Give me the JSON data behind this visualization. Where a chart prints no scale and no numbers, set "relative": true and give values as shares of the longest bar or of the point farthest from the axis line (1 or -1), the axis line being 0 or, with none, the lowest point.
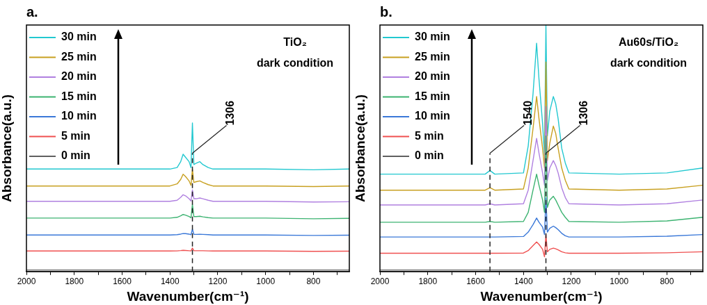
{
  "chart_data": [
    {
      "type": "line",
      "title": "a.",
      "xlabel": "Wavenumber(cm⁻¹)",
      "ylabel": "Absorbance(a.u.)",
      "relative": true,
      "legend": "top left",
      "annotations": [
        "TiO₂",
        "dark condition"
      ],
      "xlim": [
        2000,
        650
      ],
      "xticks": [
        2000,
        {
          "value": 1900,
          "label": null
        },
        1800,
        {
          "value": 1700,
          "label": null
        },
        1600,
        {
          "value": 1500,
          "label": null
        },
        1400,
        {
          "value": 1300,
          "label": null
        },
        1200,
        {
          "value": 1100,
          "label": null
        },
        1000,
        {
          "value": 900,
          "label": null
        },
        800,
        {
          "value": 700,
          "label": null
        }
      ],
      "ref_lines": [
        {
          "axis": "x",
          "value": 1306,
          "label": "1306",
          "line_style": "dashed"
        }
      ],
      "x": [
        2000,
        1600,
        1400,
        1370,
        1355,
        1345,
        1335,
        1320,
        1312,
        1306,
        1300,
        1290,
        1275,
        1262,
        1240,
        1220,
        1000,
        800,
        650
      ],
      "series": [
        {
          "name": "0 min",
          "color": "#606060",
          "values": [
            0.01,
            0.01,
            0.01,
            0.01,
            0.01,
            0.01,
            0.01,
            0.01,
            0.01,
            0.01,
            0.01,
            0.01,
            0.01,
            0.01,
            0.01,
            0.01,
            0.01,
            0.01,
            0.01
          ]
        },
        {
          "name": "5 min",
          "color": "#ef5050",
          "values": [
            0.138,
            0.138,
            0.138,
            0.139,
            0.141,
            0.143,
            0.142,
            0.14,
            0.139,
            0.158,
            0.14,
            0.14,
            0.14,
            0.14,
            0.139,
            0.138,
            0.138,
            0.136,
            0.137
          ]
        },
        {
          "name": "10 min",
          "color": "#3a78d8",
          "values": [
            0.246,
            0.246,
            0.246,
            0.248,
            0.252,
            0.256,
            0.255,
            0.252,
            0.248,
            0.286,
            0.25,
            0.25,
            0.251,
            0.25,
            0.248,
            0.246,
            0.246,
            0.243,
            0.245
          ]
        },
        {
          "name": "15 min",
          "color": "#3cb371",
          "values": [
            0.36,
            0.36,
            0.36,
            0.365,
            0.375,
            0.384,
            0.38,
            0.37,
            0.362,
            0.453,
            0.37,
            0.37,
            0.372,
            0.368,
            0.363,
            0.36,
            0.36,
            0.355,
            0.358
          ]
        },
        {
          "name": "20 min",
          "color": "#b080e0",
          "values": [
            0.473,
            0.473,
            0.473,
            0.48,
            0.5,
            0.517,
            0.51,
            0.49,
            0.475,
            0.55,
            0.49,
            0.49,
            0.495,
            0.49,
            0.48,
            0.473,
            0.473,
            0.468,
            0.47
          ]
        },
        {
          "name": "25 min",
          "color": "#c8a020",
          "values": [
            0.576,
            0.576,
            0.576,
            0.59,
            0.62,
            0.655,
            0.64,
            0.61,
            0.58,
            0.69,
            0.6,
            0.605,
            0.61,
            0.6,
            0.585,
            0.576,
            0.576,
            0.572,
            0.576
          ]
        },
        {
          "name": "30 min",
          "color": "#22c8d0",
          "values": [
            0.69,
            0.69,
            0.69,
            0.7,
            0.74,
            0.79,
            0.77,
            0.74,
            0.7,
            1.0,
            0.72,
            0.73,
            0.74,
            0.72,
            0.7,
            0.69,
            0.69,
            0.685,
            0.69
          ]
        }
      ]
    },
    {
      "type": "line",
      "title": "b.",
      "xlabel": "Wavenumber(cm⁻¹)",
      "ylabel": "Absorbance(a.u.)",
      "relative": true,
      "legend": "top left",
      "annotations": [
        "Au60s/TiO₂",
        "dark condition"
      ],
      "xlim": [
        2000,
        650
      ],
      "xticks": [
        2000,
        {
          "value": 1900,
          "label": null
        },
        1800,
        {
          "value": 1700,
          "label": null
        },
        1600,
        {
          "value": 1500,
          "label": null
        },
        1400,
        {
          "value": 1300,
          "label": null
        },
        1200,
        {
          "value": 1100,
          "label": null
        },
        1000,
        {
          "value": 900,
          "label": null
        },
        800,
        {
          "value": 700,
          "label": null
        }
      ],
      "ref_lines": [
        {
          "axis": "x",
          "value": 1540,
          "label": "1540",
          "line_style": "dashed"
        },
        {
          "axis": "x",
          "value": 1306,
          "label": "1306",
          "line_style": "dashed"
        }
      ],
      "x": [
        2000,
        1700,
        1560,
        1540,
        1520,
        1400,
        1380,
        1360,
        1345,
        1335,
        1320,
        1312,
        1306,
        1300,
        1290,
        1275,
        1265,
        1255,
        1240,
        1225,
        1210,
        1000,
        800,
        650
      ],
      "series": [
        {
          "name": "0 min",
          "color": "#606060",
          "values": [
            0.006,
            0.006,
            0.006,
            0.006,
            0.006,
            0.006,
            0.006,
            0.006,
            0.006,
            0.006,
            0.006,
            0.006,
            0.006,
            0.006,
            0.006,
            0.006,
            0.006,
            0.006,
            0.006,
            0.006,
            0.006,
            0.006,
            0.006,
            0.006
          ]
        },
        {
          "name": "5 min",
          "color": "#ef5050",
          "values": [
            0.074,
            0.074,
            0.074,
            0.074,
            0.074,
            0.075,
            0.085,
            0.105,
            0.12,
            0.11,
            0.09,
            0.06,
            0.15,
            0.08,
            0.09,
            0.095,
            0.092,
            0.088,
            0.08,
            0.076,
            0.074,
            0.074,
            0.076,
            0.08
          ]
        },
        {
          "name": "10 min",
          "color": "#3a78d8",
          "values": [
            0.14,
            0.14,
            0.14,
            0.14,
            0.14,
            0.142,
            0.16,
            0.19,
            0.217,
            0.2,
            0.18,
            0.15,
            0.3,
            0.16,
            0.175,
            0.184,
            0.178,
            0.17,
            0.155,
            0.145,
            0.14,
            0.14,
            0.143,
            0.15
          ]
        },
        {
          "name": "15 min",
          "color": "#3cb371",
          "values": [
            0.2,
            0.2,
            0.2,
            0.203,
            0.2,
            0.203,
            0.24,
            0.33,
            0.395,
            0.35,
            0.29,
            0.24,
            0.55,
            0.26,
            0.29,
            0.305,
            0.29,
            0.27,
            0.24,
            0.22,
            0.203,
            0.2,
            0.205,
            0.22
          ]
        },
        {
          "name": "20 min",
          "color": "#b080e0",
          "values": [
            0.27,
            0.27,
            0.27,
            0.275,
            0.27,
            0.275,
            0.33,
            0.45,
            0.54,
            0.48,
            0.4,
            0.35,
            0.67,
            0.37,
            0.42,
            0.45,
            0.43,
            0.4,
            0.34,
            0.3,
            0.275,
            0.27,
            0.275,
            0.29
          ]
        },
        {
          "name": "25 min",
          "color": "#c8a020",
          "values": [
            0.33,
            0.33,
            0.33,
            0.34,
            0.33,
            0.335,
            0.42,
            0.58,
            0.71,
            0.62,
            0.5,
            0.42,
            0.85,
            0.45,
            0.52,
            0.59,
            0.56,
            0.5,
            0.42,
            0.37,
            0.335,
            0.33,
            0.335,
            0.35
          ]
        },
        {
          "name": "30 min",
          "color": "#22c8d0",
          "values": [
            0.395,
            0.395,
            0.395,
            0.41,
            0.395,
            0.4,
            0.51,
            0.72,
            0.926,
            0.78,
            0.6,
            0.47,
            1.0,
            0.55,
            0.65,
            0.71,
            0.68,
            0.62,
            0.5,
            0.44,
            0.4,
            0.395,
            0.4,
            0.42
          ]
        }
      ]
    }
  ]
}
